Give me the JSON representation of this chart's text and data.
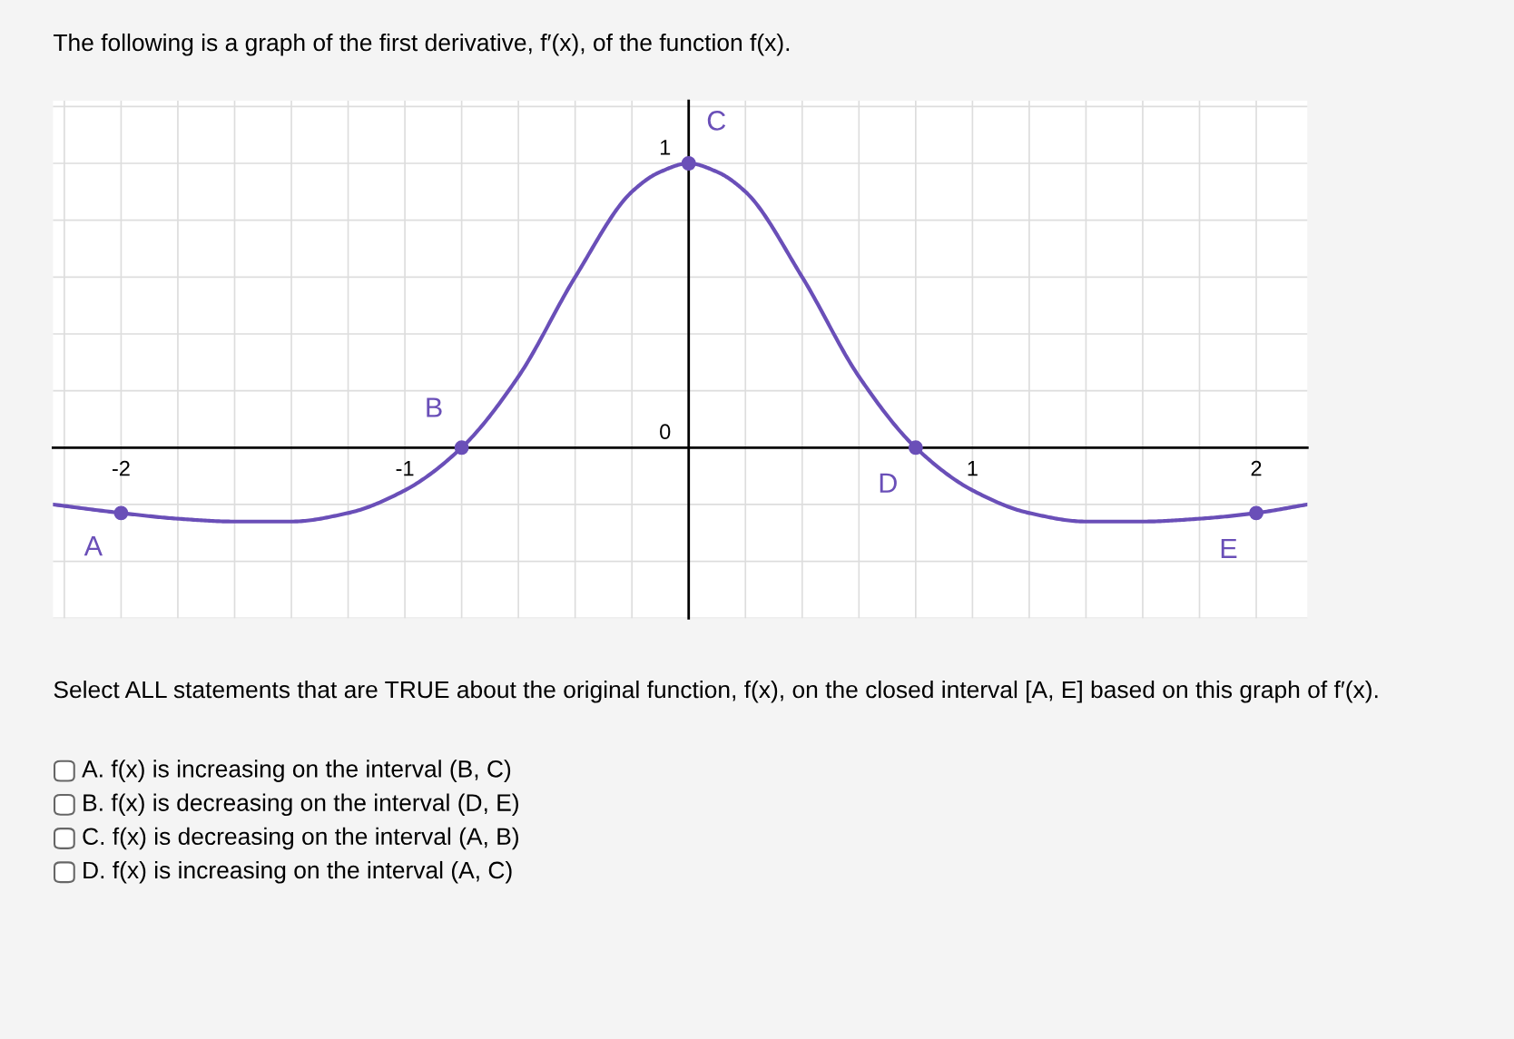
{
  "chart_data": {
    "type": "line",
    "title": "The following is a graph of the first derivative, f′(x), of the function f(x).",
    "series": [
      {
        "color": "#6a4fb8",
        "x": [
          -2.24,
          -2.0,
          -1.8,
          -1.6,
          -1.5,
          -1.4,
          -1.2,
          -1.0,
          -0.8,
          -0.6,
          -0.4,
          -0.2,
          -0.1,
          0.0,
          0.1,
          0.2,
          0.4,
          0.6,
          0.8,
          1.0,
          1.2,
          1.4,
          1.5,
          1.6,
          1.8,
          2.0,
          2.18
        ],
        "values": [
          -0.2,
          -0.23,
          -0.25,
          -0.26,
          -0.26,
          -0.26,
          -0.23,
          -0.15,
          0.0,
          0.25,
          0.6,
          0.9,
          0.97,
          1.0,
          0.97,
          0.9,
          0.6,
          0.25,
          0.0,
          -0.15,
          -0.23,
          -0.26,
          -0.26,
          -0.26,
          -0.25,
          -0.23,
          -0.2
        ]
      },
      {
        "type": "scatter",
        "marker": "circle",
        "color": "#6a4fb8",
        "x": [
          -2.0,
          -0.8,
          0.0,
          0.8,
          2.0
        ],
        "values": [
          -0.23,
          0.0,
          1.0,
          0.0,
          -0.23
        ]
      }
    ],
    "annotations": [
      {
        "text": "A",
        "x": -2.0,
        "y": -0.23
      },
      {
        "text": "B",
        "x": -0.8,
        "y": 0.0
      },
      {
        "text": "C",
        "x": 0.0,
        "y": 1.0
      },
      {
        "text": "D",
        "x": 0.8,
        "y": 0.0
      },
      {
        "text": "E",
        "x": 2.0,
        "y": -0.23
      },
      "Select ALL statements that are TRUE about the original function, f(x), on the closed interval [A, E] based on this graph of f′(x).",
      "A. f(x) is increasing on the interval (B, C)",
      "B. f(x) is decreasing on the interval (D, E)",
      "C. f(x) is decreasing on the interval (A, B)",
      "D. f(x) is increasing on the interval (A, C)"
    ],
    "xlim": [
      -2.24,
      2.18
    ],
    "ylim": [
      -0.6,
      1.22
    ],
    "xticks": [
      {
        "value": -2.2,
        "label": null
      },
      -2,
      {
        "value": -1.8,
        "label": null
      },
      {
        "value": -1.6,
        "label": null
      },
      {
        "value": -1.4,
        "label": null
      },
      {
        "value": -1.2,
        "label": null
      },
      -1,
      {
        "value": -0.8,
        "label": null
      },
      {
        "value": -0.6,
        "label": null
      },
      {
        "value": -0.4,
        "label": null
      },
      {
        "value": -0.2,
        "label": null
      },
      {
        "value": 0,
        "label": null
      },
      {
        "value": 0.2,
        "label": null
      },
      {
        "value": 0.4,
        "label": null
      },
      {
        "value": 0.6,
        "label": null
      },
      {
        "value": 0.8,
        "label": null
      },
      1,
      {
        "value": 1.2,
        "label": null
      },
      {
        "value": 1.4,
        "label": null
      },
      {
        "value": 1.6,
        "label": null
      },
      {
        "value": 1.8,
        "label": null
      },
      2
    ],
    "yticks": [
      {
        "value": -0.6,
        "label": null
      },
      {
        "value": -0.4,
        "label": null
      },
      {
        "value": -0.2,
        "label": null
      },
      0,
      {
        "value": 0.2,
        "label": null
      },
      {
        "value": 0.4,
        "label": null
      },
      {
        "value": 0.6,
        "label": null
      },
      {
        "value": 0.8,
        "label": null
      },
      1,
      {
        "value": 1.2,
        "label": null
      }
    ],
    "grid": true
  }
}
